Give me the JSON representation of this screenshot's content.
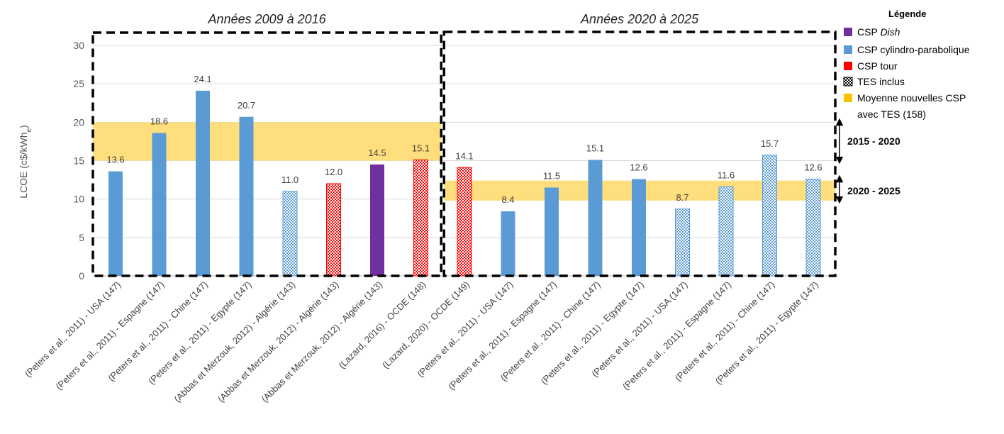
{
  "chart_data": {
    "type": "bar",
    "ylabel": "LCOE (c$/kWh",
    "ylabel_sub": "e",
    "ylabel_end": ")",
    "ylim": [
      0,
      31
    ],
    "yticks": [
      0,
      5,
      10,
      15,
      20,
      25,
      30
    ],
    "grid": true,
    "panels": [
      {
        "title_prefix": "Années ",
        "title_years": "2009 à 2016",
        "first": 0,
        "last": 7
      },
      {
        "title_prefix": "Années ",
        "title_years": "2020 à 2025",
        "first": 8,
        "last": 15
      }
    ],
    "categories": [
      "(Peters et al., 2011) - USA (147)",
      "(Peters et al., 2011) - Espagne (147)",
      "(Peters et al., 2011) - Chine (147)",
      "(Peters et al., 2011) - Egypte (147)",
      "(Abbas et Merzouk, 2012) - Algérie (143)",
      "(Abbas et Merzouk, 2012) - Algérie (143)",
      "(Abbas et Merzouk, 2012) - Algérie (143)",
      "(Lazard, 2016) - OCDE (148)",
      "(Lazard, 2020) - OCDE (149)",
      "(Peters et al., 2011) - USA (147)",
      "(Peters et al., 2011) - Espagne (147)",
      "(Peters et al., 2011) - Chine (147)",
      "(Peters et al., 2011) - Egypte (147)",
      "(Peters et al., 2011) - USA (147)",
      "(Peters et al., 2011) - Espagne (147)",
      "(Peters et al., 2011) - Chine (147)",
      "(Peters et al., 2011) - Egypte (147)"
    ],
    "values": [
      13.6,
      18.6,
      24.1,
      20.7,
      11.0,
      12.0,
      14.5,
      15.1,
      14.1,
      8.4,
      11.5,
      15.1,
      12.6,
      8.7,
      11.6,
      15.7,
      12.6
    ],
    "value_labels": [
      "13.6",
      "18.6",
      "24.1",
      "20.7",
      "11.0",
      "12.0",
      "14.5",
      "15.1",
      "14.1",
      "8.4",
      "11.5",
      "15.1",
      "12.6",
      "8.7",
      "11.6",
      "15.7",
      "12.6"
    ],
    "bar_type": [
      "cyl",
      "cyl",
      "cyl",
      "cyl",
      "cyl",
      "tour",
      "dish",
      "tour",
      "tour",
      "cyl",
      "cyl",
      "cyl",
      "cyl",
      "cyl",
      "cyl",
      "cyl",
      "cyl"
    ],
    "tes_included": [
      false,
      false,
      false,
      false,
      true,
      true,
      false,
      true,
      true,
      false,
      false,
      false,
      false,
      true,
      true,
      true,
      true
    ],
    "bands": [
      {
        "label": "2015 - 2020",
        "from": 15,
        "to": 20,
        "panel": 0
      },
      {
        "label": "2020 - 2025",
        "from": 9.8,
        "to": 12.4,
        "panel": 1
      }
    ],
    "colors": {
      "dish": "#7030a0",
      "cyl": "#5b9bd5",
      "tour": "#ff0000",
      "band": "#ffd966",
      "band_legend": "#ffc000"
    },
    "legend": {
      "title": "Légende",
      "placement": "right",
      "items": [
        {
          "key": "dish",
          "text": "CSP ",
          "text_em": "Dish",
          "swatch": "dish"
        },
        {
          "key": "cyl",
          "text": "CSP cylindro-parabolique",
          "swatch": "cyl"
        },
        {
          "key": "tour",
          "text": "CSP tour",
          "swatch": "tour"
        },
        {
          "key": "tes",
          "text": "TES inclus",
          "swatch": "tes"
        },
        {
          "key": "band",
          "text": "Moyenne nouvelles CSP",
          "text2": "avec TES (158)",
          "swatch": "band_legend"
        }
      ]
    }
  }
}
